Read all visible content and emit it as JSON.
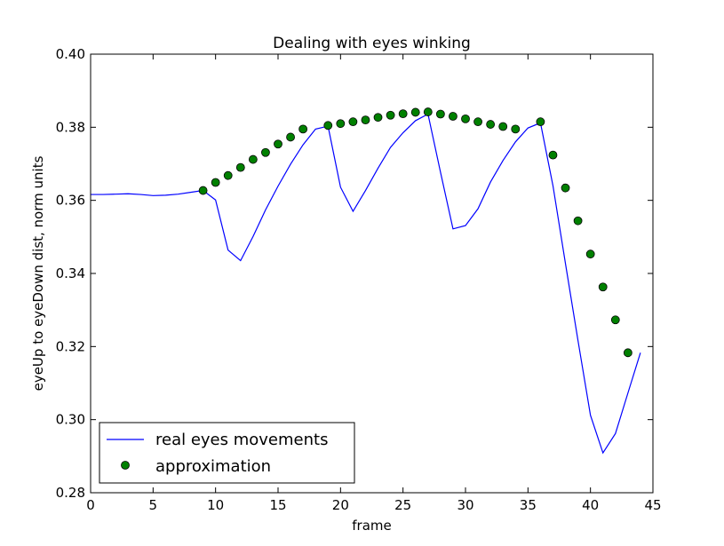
{
  "chart_data": {
    "type": "line",
    "title": "Dealing with eyes winking",
    "xlabel": "frame",
    "ylabel": "eyeUp to eyeDown dist, norm units",
    "xlim": [
      0,
      45
    ],
    "ylim": [
      0.28,
      0.4
    ],
    "xticks": [
      0,
      5,
      10,
      15,
      20,
      25,
      30,
      35,
      40,
      45
    ],
    "yticks": [
      0.28,
      0.3,
      0.32,
      0.34,
      0.36,
      0.38,
      0.4
    ],
    "xtick_labels": [
      "0",
      "5",
      "10",
      "15",
      "20",
      "25",
      "30",
      "35",
      "40",
      "45"
    ],
    "ytick_labels": [
      "0.28",
      "0.30",
      "0.32",
      "0.34",
      "0.36",
      "0.38",
      "0.40"
    ],
    "grid": false,
    "legend_position": "lower-left",
    "series": [
      {
        "name": "real eyes movements",
        "style": "line",
        "color": "#0000ff",
        "x": [
          0,
          1,
          2,
          3,
          4,
          5,
          6,
          7,
          8,
          9,
          10,
          11,
          12,
          13,
          14,
          15,
          16,
          17,
          18,
          19,
          20,
          21,
          22,
          23,
          24,
          25,
          26,
          27,
          28,
          29,
          30,
          31,
          32,
          33,
          34,
          35,
          36,
          37,
          38,
          39,
          40,
          41,
          42,
          43,
          44
        ],
        "y": [
          0.3616,
          0.3616,
          0.3617,
          0.3618,
          0.3616,
          0.3613,
          0.3614,
          0.3617,
          0.3622,
          0.3627,
          0.3601,
          0.3464,
          0.3435,
          0.3501,
          0.3574,
          0.3639,
          0.3699,
          0.3752,
          0.3795,
          0.3803,
          0.3636,
          0.357,
          0.3627,
          0.3688,
          0.3745,
          0.3785,
          0.3818,
          0.3836,
          0.3677,
          0.3522,
          0.3531,
          0.3577,
          0.365,
          0.3709,
          0.376,
          0.3798,
          0.3812,
          0.364,
          0.3427,
          0.3217,
          0.3012,
          0.2909,
          0.2962,
          0.3073,
          0.3183
        ]
      },
      {
        "name": "approximation",
        "style": "marker",
        "color": "#008000",
        "x": [
          9,
          10,
          11,
          12,
          13,
          14,
          15,
          16,
          17,
          19,
          20,
          21,
          22,
          23,
          24,
          25,
          26,
          27,
          28,
          29,
          30,
          31,
          32,
          33,
          34,
          36,
          37,
          38,
          39,
          40,
          41,
          42,
          43
        ],
        "y": [
          0.3627,
          0.3649,
          0.3668,
          0.369,
          0.3712,
          0.3731,
          0.3754,
          0.3773,
          0.3795,
          0.3805,
          0.381,
          0.3815,
          0.382,
          0.3827,
          0.3833,
          0.3837,
          0.3841,
          0.3842,
          0.3836,
          0.383,
          0.3823,
          0.3815,
          0.3808,
          0.3802,
          0.3795,
          0.3815,
          0.3724,
          0.3634,
          0.3544,
          0.3453,
          0.3363,
          0.3273,
          0.3183
        ]
      }
    ]
  }
}
